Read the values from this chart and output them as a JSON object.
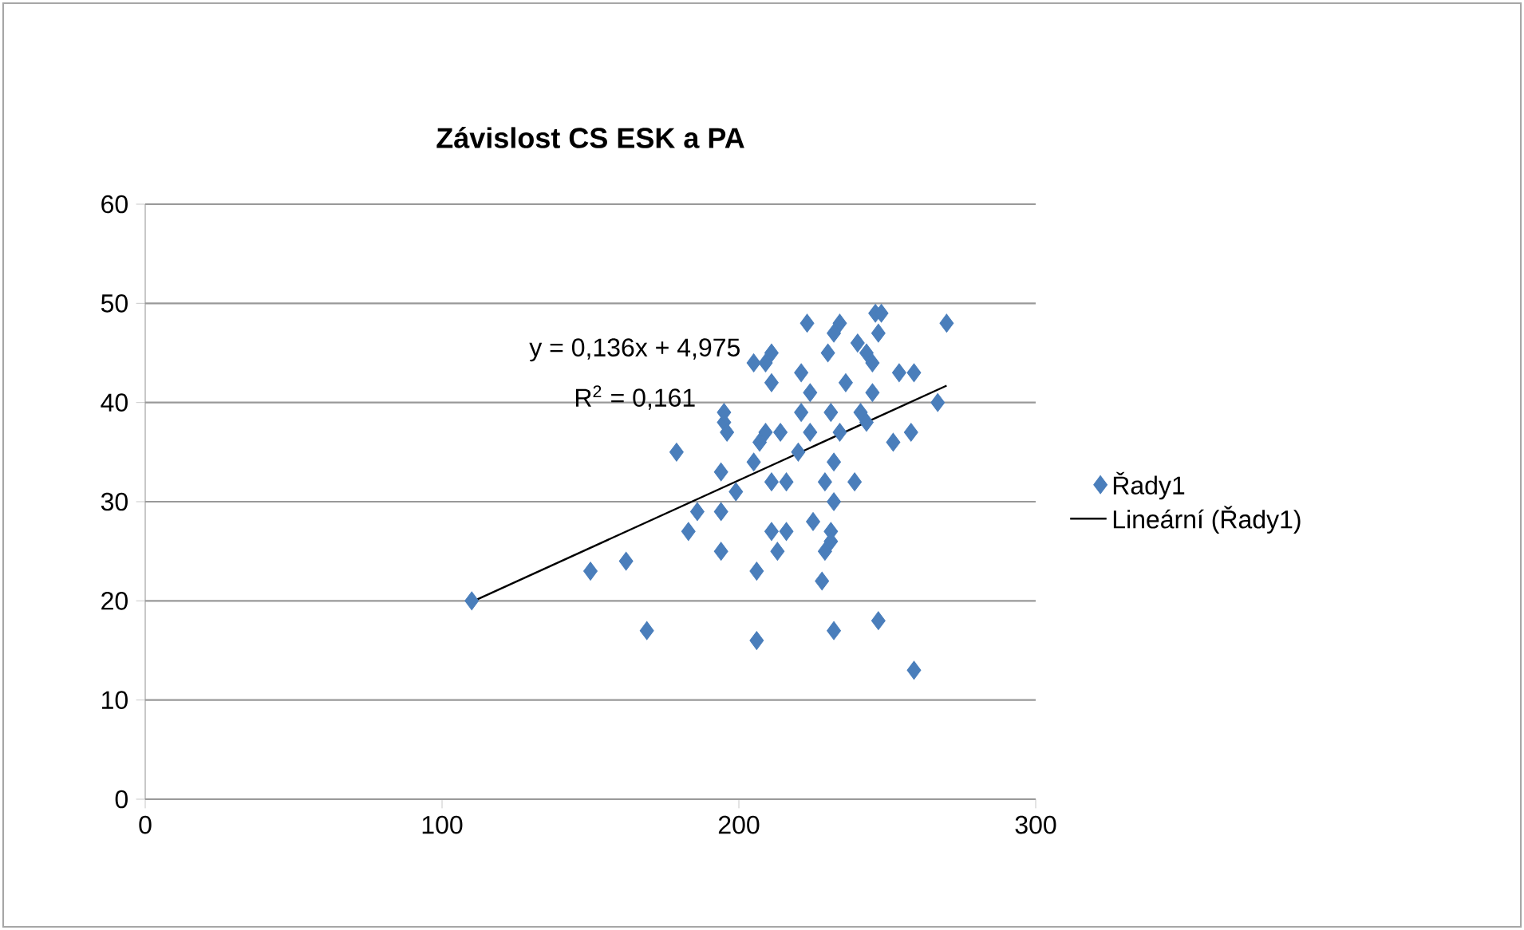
{
  "chart_data": {
    "type": "scatter",
    "title": "Závislost CS ESK a PA",
    "annotations": [
      "y = 0,136x + 4,975",
      "R$^{2}$ = 0,161"
    ],
    "xlim": [
      0,
      300
    ],
    "xticks": [
      0,
      100,
      200,
      300
    ],
    "ylim": [
      0,
      60
    ],
    "yticks": [
      0,
      10,
      20,
      30,
      40,
      50,
      60
    ],
    "grid": "y",
    "legend": "right",
    "marker": "diamond",
    "series": [
      {
        "name": "Řady1",
        "color": "#4a7ebb",
        "x": [
          110,
          150,
          162,
          169,
          179,
          183,
          186,
          194,
          194,
          195,
          195,
          196,
          194,
          223,
          234,
          246,
          248,
          270,
          232,
          247,
          205,
          211,
          209,
          230,
          240,
          243,
          245,
          254,
          259,
          221,
          211,
          224,
          236,
          245,
          267,
          221,
          231,
          241,
          243,
          252,
          258,
          209,
          214,
          224,
          234,
          205,
          207,
          220,
          232,
          211,
          216,
          229,
          239,
          232,
          199,
          211,
          216,
          225,
          231,
          231,
          229,
          213,
          206,
          228,
          206,
          232,
          247,
          259
        ],
        "values": [
          20,
          23,
          24,
          17,
          35,
          27,
          29,
          29,
          33,
          38,
          39,
          37,
          25,
          48,
          48,
          49,
          49,
          48,
          47,
          47,
          44,
          45,
          44,
          45,
          46,
          45,
          44,
          43,
          43,
          43,
          42,
          41,
          42,
          41,
          40,
          39,
          39,
          39,
          38,
          36,
          37,
          37,
          37,
          37,
          37,
          34,
          36,
          35,
          34,
          32,
          32,
          32,
          32,
          30,
          31,
          27,
          27,
          28,
          27,
          26,
          25,
          25,
          23,
          22,
          16,
          17,
          18,
          13
        ]
      },
      {
        "name": "Lineární (Řady1)",
        "type": "line",
        "color": "#000000",
        "marker": "none",
        "line_style": "solid",
        "x": [
          110,
          270
        ],
        "values": [
          19.9,
          41.7
        ]
      }
    ]
  }
}
